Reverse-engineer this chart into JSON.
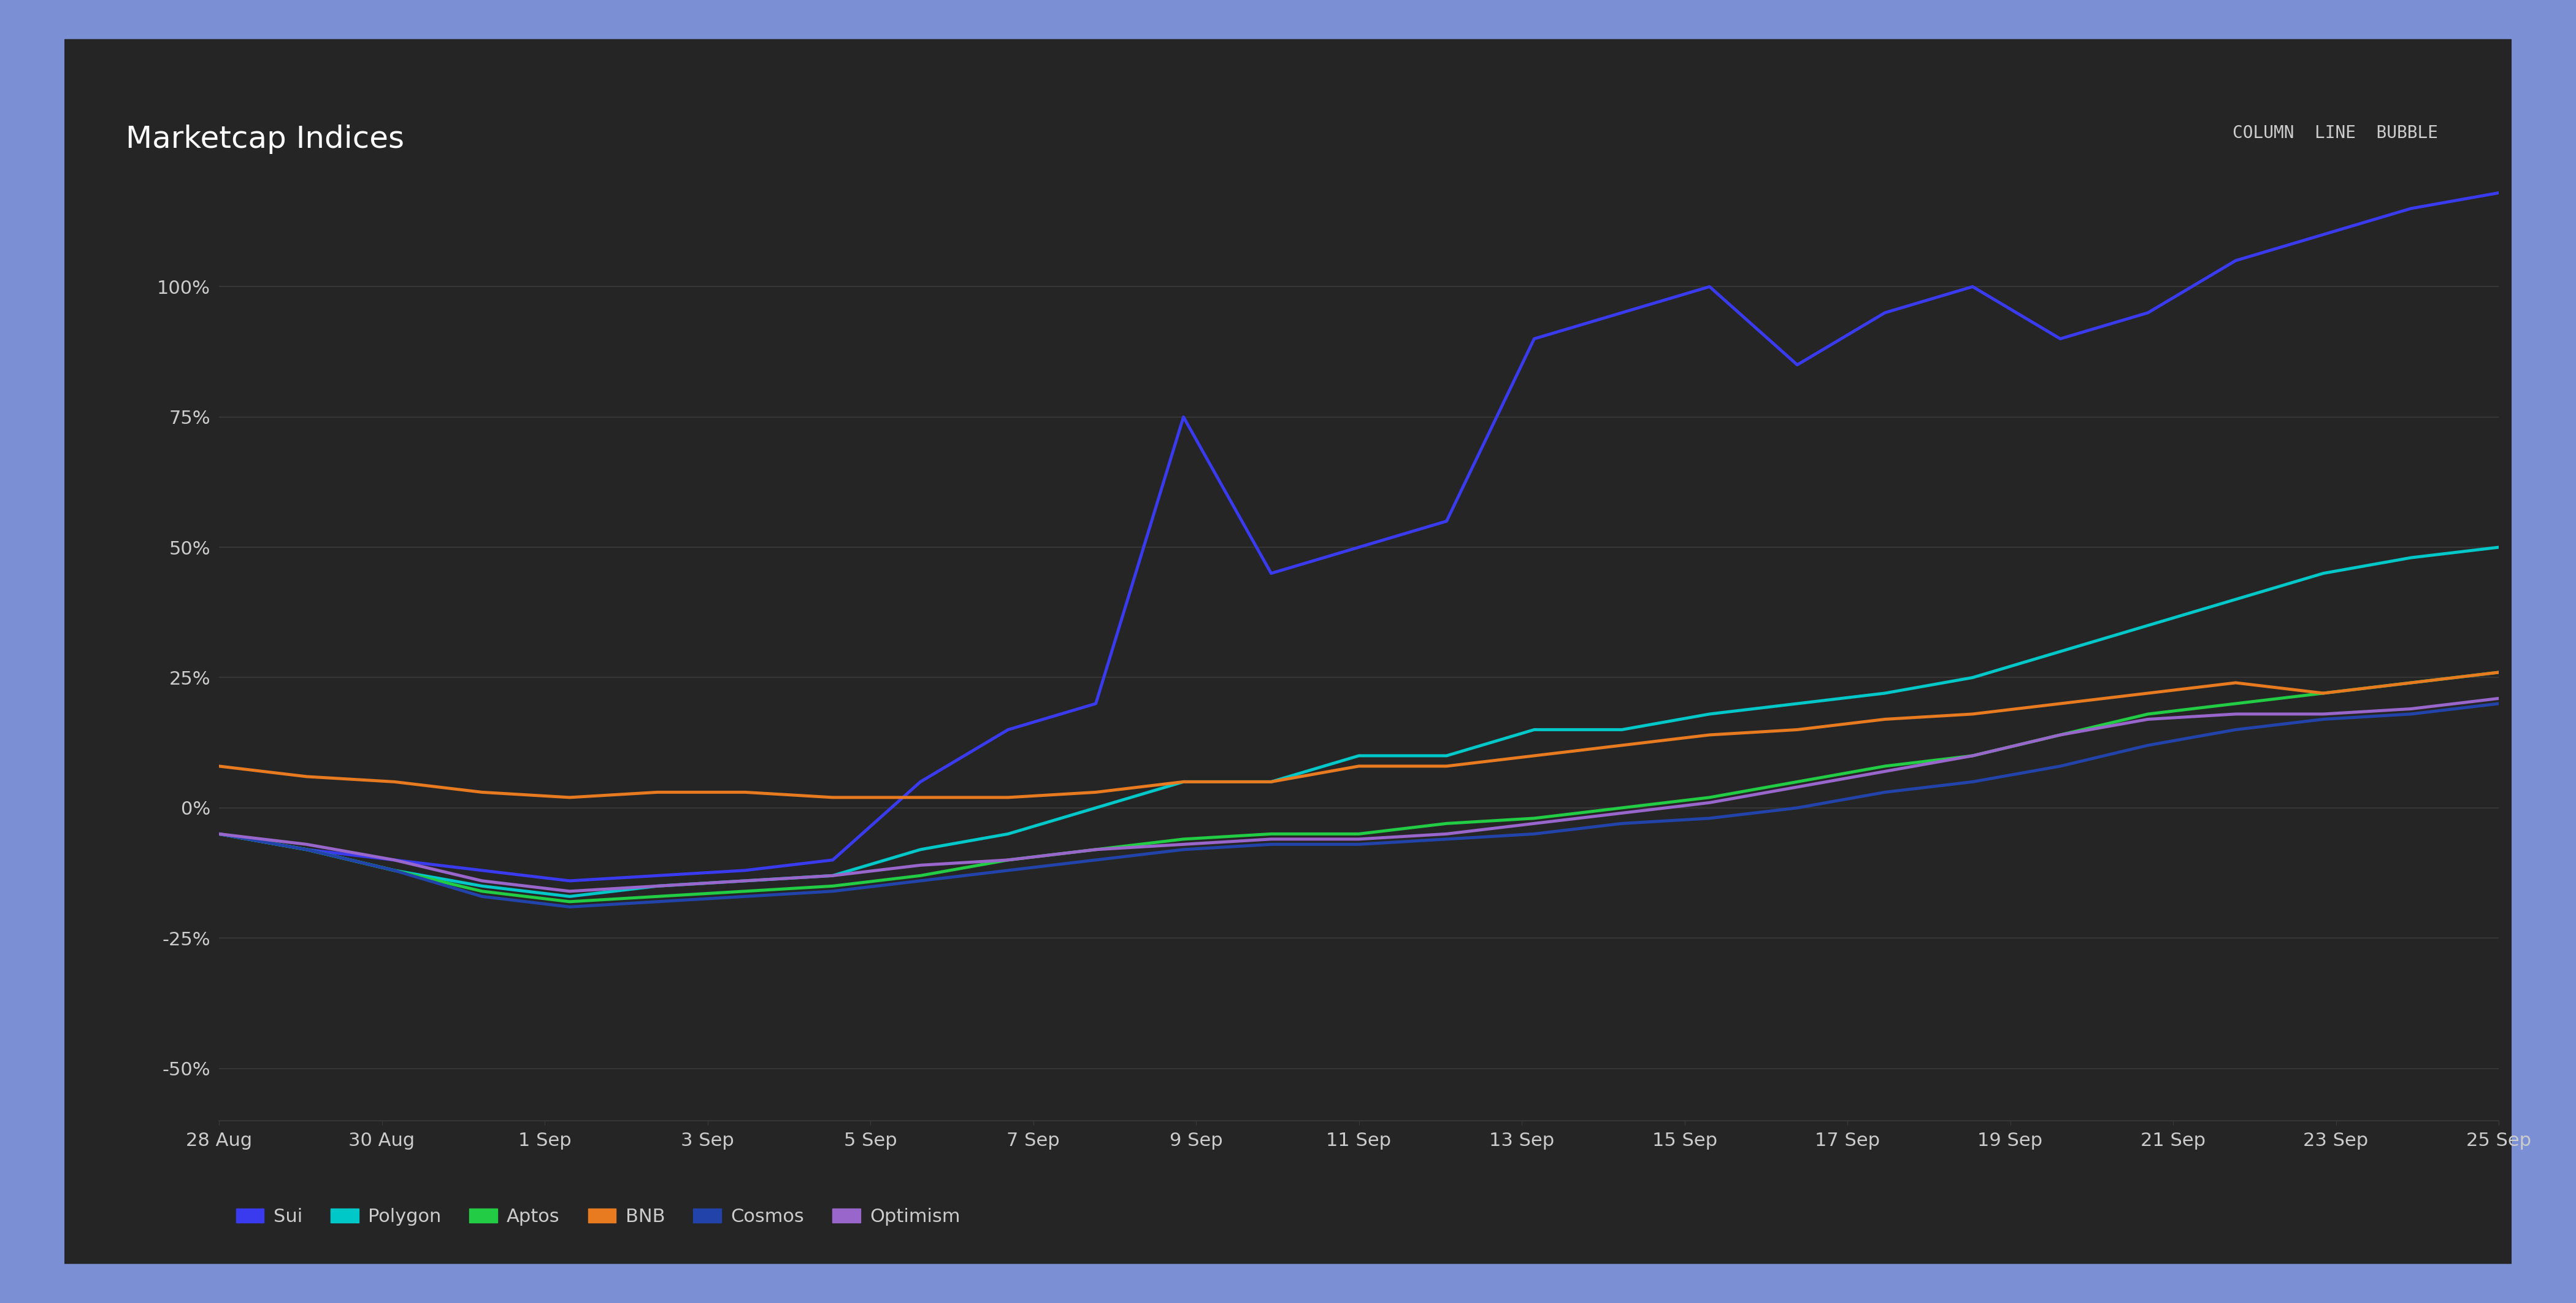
{
  "title": "Marketcap Indices",
  "top_right_text": "COLUMN  LINE  BUBBLE",
  "background_outer": "#7B8FD4",
  "background_card": "#252525",
  "grid_color": "#3a3a3a",
  "text_color": "#cccccc",
  "title_color": "#ffffff",
  "ylim": [
    -60,
    120
  ],
  "yticks": [
    -50,
    -25,
    0,
    25,
    50,
    75,
    100
  ],
  "ytick_labels": [
    "-50%",
    "-25%",
    "0%",
    "25%",
    "50%",
    "75%",
    "100%"
  ],
  "x_labels": [
    "28 Aug",
    "30 Aug",
    "1 Sep",
    "3 Sep",
    "5 Sep",
    "7 Sep",
    "9 Sep",
    "11 Sep",
    "13 Sep",
    "15 Sep",
    "17 Sep",
    "19 Sep",
    "21 Sep",
    "23 Sep",
    "25 Sep"
  ],
  "series": {
    "Sui": {
      "color": "#3a3aee",
      "linewidth": 2.0,
      "values": [
        -5,
        -8,
        -10,
        -12,
        -14,
        -13,
        -12,
        -10,
        5,
        15,
        20,
        75,
        45,
        50,
        55,
        90,
        95,
        100,
        85,
        95,
        100,
        90,
        95,
        105,
        110,
        115,
        118
      ]
    },
    "Polygon": {
      "color": "#00c8c8",
      "linewidth": 2.0,
      "values": [
        -5,
        -8,
        -12,
        -15,
        -17,
        -15,
        -14,
        -13,
        -8,
        -5,
        0,
        5,
        5,
        10,
        10,
        15,
        15,
        18,
        20,
        22,
        25,
        30,
        35,
        40,
        45,
        48,
        50
      ]
    },
    "Aptos": {
      "color": "#22cc44",
      "linewidth": 2.0,
      "values": [
        -5,
        -8,
        -12,
        -16,
        -18,
        -17,
        -16,
        -15,
        -13,
        -10,
        -8,
        -6,
        -5,
        -5,
        -3,
        -2,
        0,
        2,
        5,
        8,
        10,
        14,
        18,
        20,
        22,
        24,
        26
      ]
    },
    "BNB": {
      "color": "#e87a20",
      "linewidth": 2.0,
      "values": [
        8,
        6,
        5,
        3,
        2,
        3,
        3,
        2,
        2,
        2,
        3,
        5,
        5,
        8,
        8,
        10,
        12,
        14,
        15,
        17,
        18,
        20,
        22,
        24,
        22,
        24,
        26
      ]
    },
    "Cosmos": {
      "color": "#2244aa",
      "linewidth": 2.0,
      "values": [
        -5,
        -8,
        -12,
        -17,
        -19,
        -18,
        -17,
        -16,
        -14,
        -12,
        -10,
        -8,
        -7,
        -7,
        -6,
        -5,
        -3,
        -2,
        0,
        3,
        5,
        8,
        12,
        15,
        17,
        18,
        20
      ]
    },
    "Optimism": {
      "color": "#9966cc",
      "linewidth": 2.0,
      "values": [
        -5,
        -7,
        -10,
        -14,
        -16,
        -15,
        -14,
        -13,
        -11,
        -10,
        -8,
        -7,
        -6,
        -6,
        -5,
        -3,
        -1,
        1,
        4,
        7,
        10,
        14,
        17,
        18,
        18,
        19,
        21
      ]
    }
  }
}
